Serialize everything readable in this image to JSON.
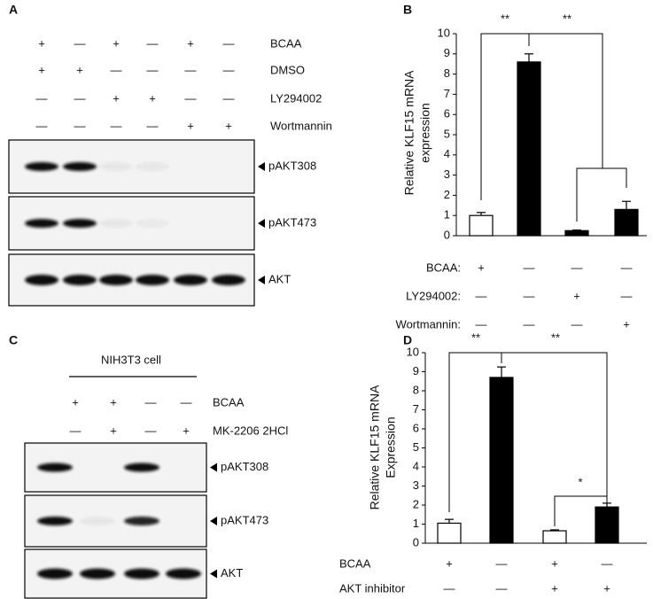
{
  "chart_data": [
    {
      "panel": "B",
      "type": "bar",
      "y_label": [
        "Relative  KLF15 mRNA",
        "expression"
      ],
      "values": [
        1.0,
        8.6,
        0.25,
        1.3
      ],
      "errors": [
        0.15,
        0.4,
        0.03,
        0.4
      ],
      "colors": [
        "#ffffff",
        "#000000",
        "#000000",
        "#000000"
      ],
      "ylim": [
        0,
        10
      ],
      "yticks": [
        0,
        1,
        2,
        3,
        4,
        5,
        6,
        7,
        8,
        9,
        10
      ],
      "conditions": [
        {
          "name": "BCAA:",
          "signs": [
            "+",
            "—",
            "—",
            "—"
          ]
        },
        {
          "name": "LY294002:",
          "signs": [
            "—",
            "—",
            "+",
            "—"
          ]
        },
        {
          "name": "Wortmannin:",
          "signs": [
            "—",
            "—",
            "—",
            "+"
          ]
        }
      ],
      "annotations": [
        "**",
        "**"
      ]
    },
    {
      "panel": "D",
      "type": "bar",
      "y_label": [
        "Relative  KLF15 mRNA",
        "Expression"
      ],
      "values": [
        1.05,
        8.7,
        0.65,
        1.9
      ],
      "errors": [
        0.2,
        0.55,
        0.05,
        0.2
      ],
      "colors": [
        "#ffffff",
        "#000000",
        "#ffffff",
        "#000000"
      ],
      "ylim": [
        0,
        10
      ],
      "yticks": [
        0,
        1,
        2,
        3,
        4,
        5,
        6,
        7,
        8,
        9,
        10
      ],
      "conditions": [
        {
          "name": "BCAA",
          "signs": [
            "+",
            "—",
            "+",
            "—"
          ]
        },
        {
          "name": "AKT inhibitor",
          "signs": [
            "—",
            "—",
            "+",
            "+"
          ]
        }
      ],
      "annotations": [
        "**",
        "**",
        "*"
      ]
    }
  ],
  "blots": [
    {
      "panel": "A",
      "rows": [
        {
          "name": "BCAA",
          "signs": [
            "+",
            "—",
            "+",
            "—",
            "+",
            "—"
          ]
        },
        {
          "name": "DMSO",
          "signs": [
            "+",
            "+",
            "—",
            "—",
            "—",
            "—"
          ]
        },
        {
          "name": "LY294002",
          "signs": [
            "—",
            "—",
            "+",
            "+",
            "—",
            "—"
          ]
        },
        {
          "name": "Wortmannin",
          "signs": [
            "—",
            "—",
            "—",
            "—",
            "+",
            "+"
          ]
        }
      ],
      "bands": [
        "pAKT308",
        "pAKT473",
        "AKT"
      ]
    },
    {
      "panel": "C",
      "header": "NIH3T3  cell",
      "rows": [
        {
          "name": "BCAA",
          "signs": [
            "+",
            "+",
            "—",
            "—"
          ]
        },
        {
          "name": "MK-2206 2HCl",
          "signs": [
            "—",
            "+",
            "—",
            "+"
          ]
        }
      ],
      "bands": [
        "pAKT308",
        "pAKT473",
        "AKT"
      ]
    }
  ]
}
